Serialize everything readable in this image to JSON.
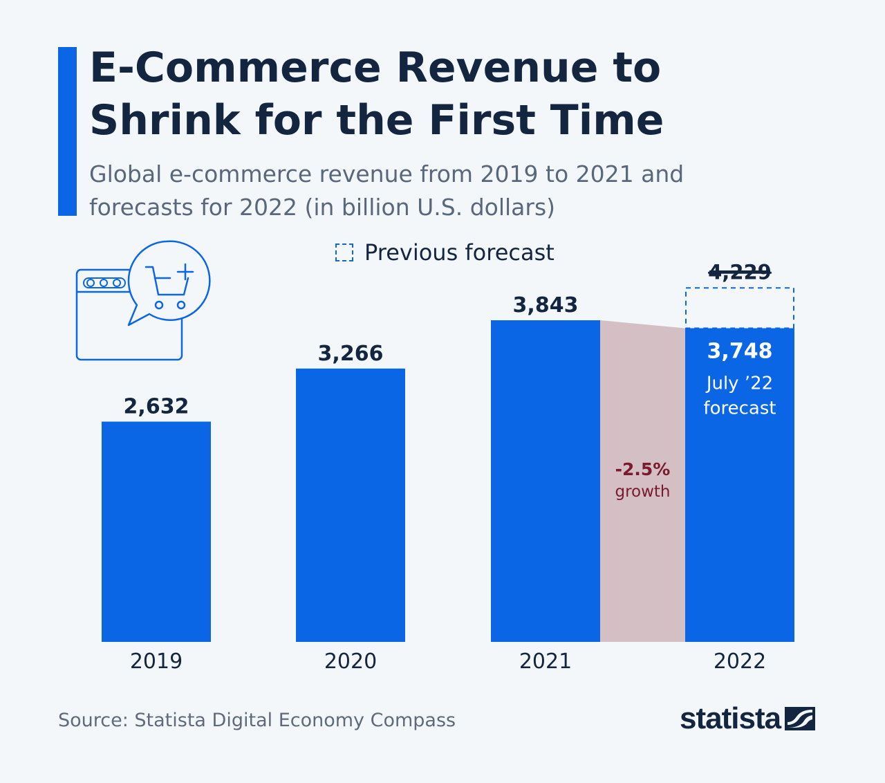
{
  "header": {
    "title": "E-Commerce Revenue to Shrink for the First Time",
    "subtitle": "Global e-commerce revenue from 2019 to 2021 and forecasts for 2022 (in billion U.S. dollars)"
  },
  "legend": {
    "previous_forecast_label": "Previous forecast"
  },
  "colors": {
    "bar": "#0a66e4",
    "accent": "#0a66e4",
    "growth_band": "#d4bfc5",
    "growth_text": "#7a1a2c",
    "title": "#13253f",
    "background": "#f4f7fa"
  },
  "chart_data": {
    "type": "bar",
    "title": "E-Commerce Revenue to Shrink for the First Time",
    "subtitle": "Global e-commerce revenue from 2019 to 2021 and forecasts for 2022 (in billion U.S. dollars)",
    "categories": [
      "2019",
      "2020",
      "2021",
      "2022"
    ],
    "values": [
      2632,
      3266,
      3843,
      3748
    ],
    "value_labels": [
      "2,632",
      "3,266",
      "3,843",
      "3,748"
    ],
    "unit": "billion U.S. dollars",
    "ylim": [
      0,
      4229
    ],
    "grid": false,
    "previous_forecast": {
      "category": "2022",
      "value": 4229,
      "label": "4,229"
    },
    "forecast_note": "July ’22 forecast",
    "forecast_note_lines": [
      "July ’22",
      "forecast"
    ],
    "growth": {
      "from": "2021",
      "to": "2022",
      "value_label": "-2.5%",
      "text": "growth"
    }
  },
  "icon": {
    "name": "online-shopping-cart-icon"
  },
  "footer": {
    "source": "Source: Statista Digital Economy Compass",
    "brand": "statista"
  }
}
